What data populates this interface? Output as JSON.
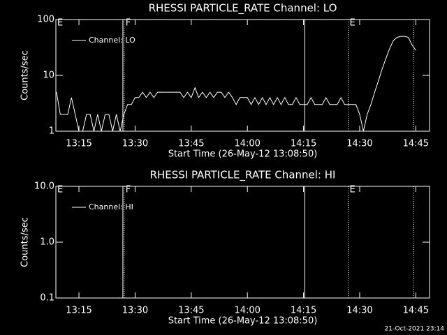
{
  "chart_data": [
    {
      "type": "line",
      "title": "RHESSI PARTICLE_RATE Channel: LO",
      "ylabel": "Counts/sec",
      "xlabel": "Start Time (26-May-12 13:08:50)",
      "log_y": true,
      "color": "#ffffff",
      "xlim": [
        "13:08:50",
        "14:48:40"
      ],
      "xticks": [
        "13:15",
        "13:30",
        "13:45",
        "14:00",
        "14:15",
        "14:30",
        "14:45"
      ],
      "ylim": [
        1,
        100
      ],
      "yticks": [
        1,
        10,
        100
      ],
      "x": [
        "13:09",
        "13:10",
        "13:11",
        "13:12",
        "13:13",
        "13:14",
        "13:15",
        "13:16",
        "13:17",
        "13:18",
        "13:19",
        "13:20",
        "13:21",
        "13:22",
        "13:23",
        "13:24",
        "13:25",
        "13:26",
        "13:27",
        "13:28",
        "13:29",
        "13:30",
        "13:31",
        "13:32",
        "13:33",
        "13:34",
        "13:35",
        "13:36",
        "13:37",
        "13:38",
        "13:39",
        "13:40",
        "13:41",
        "13:42",
        "13:43",
        "13:44",
        "13:45",
        "13:46",
        "13:47",
        "13:48",
        "13:49",
        "13:50",
        "13:51",
        "13:52",
        "13:53",
        "13:54",
        "13:55",
        "13:56",
        "13:57",
        "13:58",
        "13:59",
        "14:00",
        "14:01",
        "14:02",
        "14:03",
        "14:04",
        "14:05",
        "14:06",
        "14:07",
        "14:08",
        "14:09",
        "14:10",
        "14:11",
        "14:12",
        "14:13",
        "14:14",
        "14:15",
        "14:16",
        "14:17",
        "14:18",
        "14:19",
        "14:20",
        "14:21",
        "14:22",
        "14:23",
        "14:24",
        "14:25",
        "14:26",
        "14:27",
        "14:28",
        "14:29",
        "14:30",
        "14:31",
        "14:32",
        "14:33",
        "14:34",
        "14:35",
        "14:36",
        "14:37",
        "14:38",
        "14:39",
        "14:40",
        "14:41",
        "14:42",
        "14:43",
        "14:44",
        "14:45"
      ],
      "series": [
        {
          "name": "Channel: LO",
          "color": "#ffffff",
          "values": [
            5,
            2,
            2,
            2,
            4,
            2,
            1,
            1,
            2,
            2,
            1,
            2,
            1,
            2,
            2,
            1,
            2,
            1,
            2,
            3,
            3,
            4,
            4,
            5,
            4,
            5,
            4,
            5,
            5,
            5,
            5,
            5,
            5,
            5,
            4,
            5,
            4,
            6,
            4,
            5,
            4,
            5,
            4,
            5,
            5,
            4,
            5,
            4,
            3,
            4,
            4,
            4,
            3,
            4,
            3,
            4,
            3,
            4,
            3,
            4,
            3,
            4,
            3,
            3,
            4,
            3,
            3,
            3,
            4,
            3,
            3,
            3,
            4,
            3,
            3,
            3,
            4,
            3,
            3,
            3,
            3,
            2,
            1,
            2,
            3,
            5,
            8,
            13,
            20,
            30,
            42,
            48,
            50,
            50,
            48,
            35,
            28
          ]
        }
      ],
      "markers": [
        {
          "x": "13:08:50",
          "label": "E",
          "style": "solid"
        },
        {
          "x": "13:26:44",
          "style": "solid"
        },
        {
          "x": "13:27:05",
          "label": "F",
          "style": "dotted"
        },
        {
          "x": "14:15:20",
          "style": "solid"
        },
        {
          "x": "14:26:56",
          "label": "E",
          "style": "dotted"
        },
        {
          "x": "14:44:26",
          "style": "dotted"
        }
      ]
    },
    {
      "type": "line",
      "title": "RHESSI PARTICLE_RATE Channel: HI",
      "ylabel": "Counts/sec",
      "xlabel": "Start Time (26-May-12 13:08:50)",
      "log_y": true,
      "color": "#ffffff",
      "xlim": [
        "13:08:50",
        "14:48:40"
      ],
      "xticks": [
        "13:15",
        "13:30",
        "13:45",
        "14:00",
        "14:15",
        "14:30",
        "14:45"
      ],
      "ylim": [
        0.1,
        10
      ],
      "yticks": [
        0.1,
        {
          "value": 1,
          "label": "1.0"
        },
        {
          "value": 10,
          "label": "10.0"
        }
      ],
      "x": [],
      "series": [
        {
          "name": "Channel: HI",
          "color": "#ffffff",
          "values": []
        }
      ],
      "markers": [
        {
          "x": "13:08:50",
          "label": "E",
          "style": "solid"
        },
        {
          "x": "13:26:44",
          "style": "solid"
        },
        {
          "x": "13:27:05",
          "label": "F",
          "style": "dotted"
        },
        {
          "x": "14:15:20",
          "style": "solid"
        },
        {
          "x": "14:26:56",
          "label": "E",
          "style": "dotted"
        },
        {
          "x": "14:44:26",
          "style": "dotted"
        }
      ]
    }
  ],
  "footer": "21-Oct-2021 23:14"
}
